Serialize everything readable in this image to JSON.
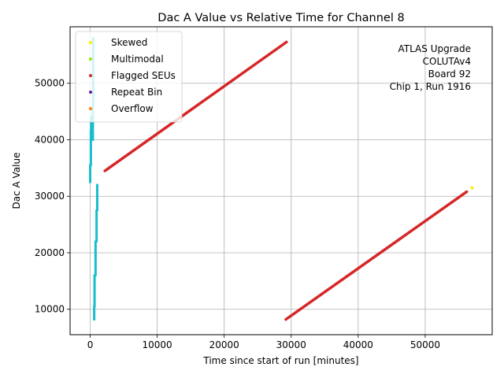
{
  "chart_data": {
    "type": "scatter",
    "title": "Dac A Value vs Relative Time for Channel 8",
    "xlabel": "Time since start of run [minutes]",
    "ylabel": "Dac A Value",
    "xlim": [
      -3000,
      60000
    ],
    "ylim": [
      5500,
      60000
    ],
    "xticks": [
      0,
      10000,
      20000,
      30000,
      40000,
      50000
    ],
    "xtick_labels": [
      "0",
      "10000",
      "20000",
      "30000",
      "40000",
      "50000"
    ],
    "yticks": [
      10000,
      20000,
      30000,
      40000,
      50000
    ],
    "ytick_labels": [
      "10000",
      "20000",
      "30000",
      "40000",
      "50000"
    ],
    "grid": true,
    "legend_placement": "top-left",
    "annotation": [
      "ATLAS Upgrade",
      "COLUTAv4",
      "Board 92",
      "Chip 1, Run 1916"
    ],
    "legend": [
      {
        "name": "Skewed",
        "color": "#ffee00"
      },
      {
        "name": "Multimodal",
        "color": "#99ee00"
      },
      {
        "name": "Flagged SEUs",
        "color": "#d62728"
      },
      {
        "name": "Repeat Bin",
        "color": "#6a1b9a"
      },
      {
        "name": "Overflow",
        "color": "#ff7f0e"
      }
    ],
    "series": [
      {
        "category": "normal",
        "color": "#17becf",
        "segments": [
          {
            "x": [
              0,
              0
            ],
            "y": [
              32500,
              35500
            ]
          },
          {
            "x": [
              100,
              100
            ],
            "y": [
              35500,
              41500
            ]
          },
          {
            "x": [
              150,
              150
            ],
            "y": [
              41500,
              44000
            ]
          },
          {
            "x": [
              400,
              400
            ],
            "y": [
              40000,
              46000
            ]
          },
          {
            "x": [
              450,
              450
            ],
            "y": [
              46000,
              58000
            ]
          },
          {
            "x": [
              600,
              600
            ],
            "y": [
              8200,
              10500
            ]
          },
          {
            "x": [
              650,
              650
            ],
            "y": [
              10500,
              16000
            ]
          },
          {
            "x": [
              800,
              800
            ],
            "y": [
              16000,
              22000
            ]
          },
          {
            "x": [
              950,
              950
            ],
            "y": [
              22000,
              27500
            ]
          },
          {
            "x": [
              1050,
              1050
            ],
            "y": [
              27500,
              32000
            ]
          }
        ]
      },
      {
        "category": "Flagged SEUs",
        "color": "#d62728",
        "segments": [
          {
            "x": [
              2200,
              29300
            ],
            "y": [
              34500,
              57300
            ]
          },
          {
            "x": [
              29200,
              56200
            ],
            "y": [
              8200,
              30800
            ]
          }
        ]
      },
      {
        "category": "Skewed",
        "color": "#ffee00",
        "points": [
          {
            "x": 57000,
            "y": 31500
          }
        ]
      }
    ]
  }
}
